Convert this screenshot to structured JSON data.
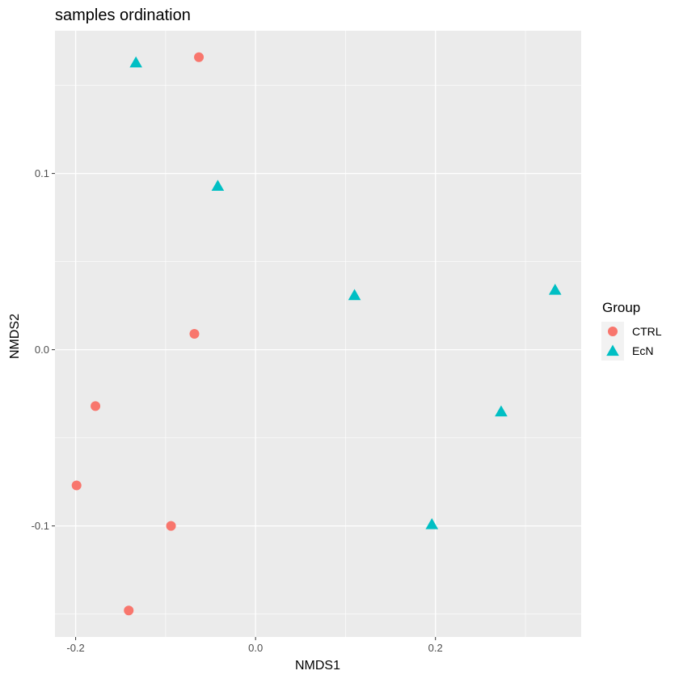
{
  "chart_data": {
    "type": "scatter",
    "title": "samples ordination",
    "xlabel": "NMDS1",
    "ylabel": "NMDS2",
    "xlim": [
      -0.223,
      0.362
    ],
    "ylim": [
      -0.163,
      0.181
    ],
    "x_ticks": [
      -0.2,
      0.0,
      0.2
    ],
    "x_tick_labels": [
      "-0.2",
      "0.0",
      "0.2"
    ],
    "y_ticks": [
      -0.1,
      0.0,
      0.1
    ],
    "y_tick_labels": [
      "-0.1",
      "0.0",
      "0.1"
    ],
    "background": "#EBEBEB",
    "grid": true,
    "legend": {
      "title": "Group",
      "position": "right"
    },
    "series": [
      {
        "name": "CTRL",
        "shape": "circle",
        "color": "#F8766D",
        "points": [
          {
            "x": -0.063,
            "y": 0.166
          },
          {
            "x": -0.068,
            "y": 0.009
          },
          {
            "x": -0.178,
            "y": -0.032
          },
          {
            "x": -0.199,
            "y": -0.077
          },
          {
            "x": -0.094,
            "y": -0.1
          },
          {
            "x": -0.141,
            "y": -0.148
          }
        ]
      },
      {
        "name": "EcN",
        "shape": "triangle",
        "color": "#00BFC4",
        "points": [
          {
            "x": -0.133,
            "y": 0.163
          },
          {
            "x": -0.042,
            "y": 0.093
          },
          {
            "x": 0.11,
            "y": 0.031
          },
          {
            "x": 0.333,
            "y": 0.034
          },
          {
            "x": 0.273,
            "y": -0.035
          },
          {
            "x": 0.196,
            "y": -0.099
          }
        ]
      }
    ]
  }
}
